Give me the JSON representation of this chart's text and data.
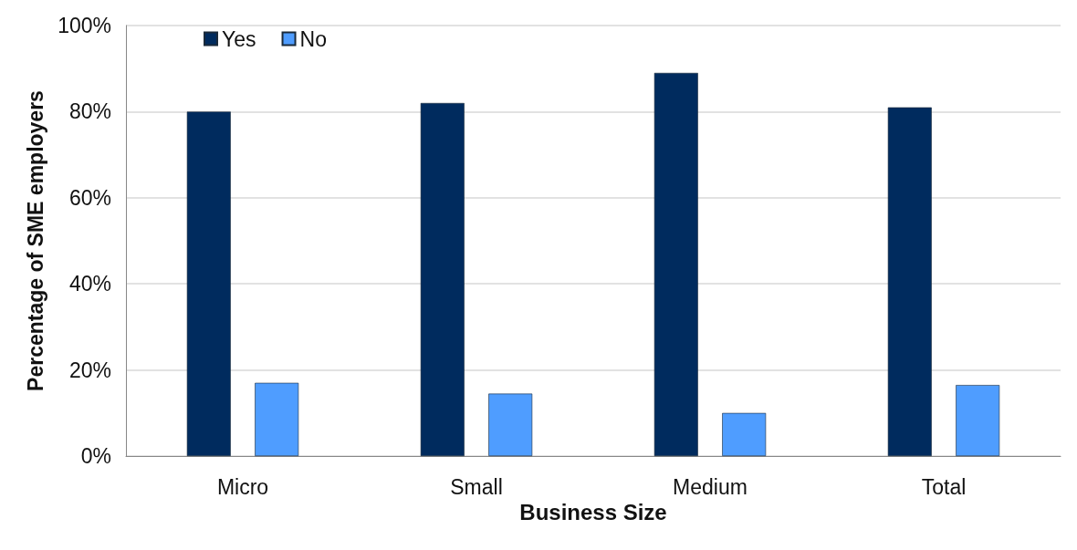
{
  "chart_data": {
    "type": "bar",
    "xlabel": "Business Size",
    "ylabel": "Percentage of SME employers",
    "categories": [
      "Micro",
      "Small",
      "Medium",
      "Total"
    ],
    "series": [
      {
        "name": "Yes",
        "color": "#002b5e",
        "values": [
          80,
          82,
          89,
          81
        ]
      },
      {
        "name": "No",
        "color": "#4f9dff",
        "values": [
          17,
          14.5,
          10,
          16.5
        ]
      }
    ],
    "ylim": [
      0,
      100
    ],
    "yticks": [
      {
        "value": 0,
        "label": "0%"
      },
      {
        "value": 20,
        "label": "20%"
      },
      {
        "value": 40,
        "label": "40%"
      },
      {
        "value": 60,
        "label": "60%"
      },
      {
        "value": 80,
        "label": "80%"
      },
      {
        "value": 100,
        "label": "100%"
      }
    ],
    "grid": "y",
    "legend": "top left"
  }
}
